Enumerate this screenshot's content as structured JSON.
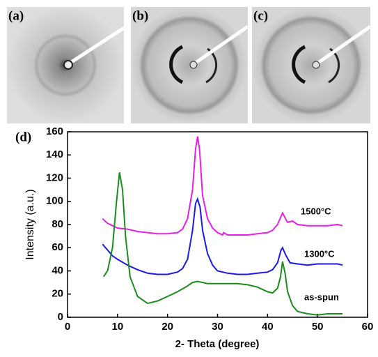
{
  "panels": [
    {
      "label": "(a)"
    },
    {
      "label": "(b)"
    },
    {
      "label": "(c)"
    }
  ],
  "chart_data": {
    "type": "line",
    "panel_label": "(d)",
    "x_label": "2- Theta (degree)",
    "y_label": "Intensity (a.u.)",
    "xlim": [
      0,
      60
    ],
    "xticks": [
      0,
      10,
      20,
      30,
      40,
      50,
      60
    ],
    "ylim": [
      0,
      160
    ],
    "yticks": [
      0,
      20,
      40,
      60,
      80,
      100,
      120,
      140,
      160
    ],
    "series": [
      {
        "name": "1500°C",
        "color": "#e81ee8",
        "x": [
          7,
          8,
          10,
          12,
          14,
          16,
          18,
          20,
          22,
          23,
          24,
          25,
          25.6,
          26,
          26.4,
          27,
          28,
          29,
          30,
          31,
          31.2,
          32,
          34,
          36,
          38,
          40,
          41,
          42,
          42.8,
          43,
          43.6,
          44,
          45,
          46,
          48,
          50,
          52,
          54,
          55
        ],
        "values": [
          85,
          81,
          77,
          76,
          74,
          73,
          72,
          72,
          73,
          76,
          85,
          110,
          145,
          156,
          145,
          105,
          85,
          77,
          73,
          71,
          73,
          71,
          71,
          71,
          72,
          73,
          75,
          80,
          88,
          90,
          85,
          82,
          83,
          80,
          79,
          79,
          79,
          80,
          79
        ]
      },
      {
        "name": "1300°C",
        "color": "#1a1ae6",
        "x": [
          7,
          8,
          9,
          10,
          12,
          14,
          16,
          18,
          20,
          22,
          23,
          24,
          25,
          25.6,
          26,
          26.5,
          27,
          28,
          29,
          30,
          32,
          34,
          36,
          38,
          40,
          41,
          42,
          42.7,
          43,
          43.6,
          44.5,
          46,
          48,
          50,
          52,
          54,
          55
        ],
        "values": [
          63,
          58,
          53,
          50,
          45,
          41,
          38,
          37,
          37,
          39,
          42,
          50,
          75,
          98,
          102,
          95,
          75,
          55,
          45,
          40,
          38,
          37,
          37,
          38,
          39,
          41,
          47,
          58,
          60,
          54,
          47,
          46,
          45,
          46,
          46,
          46,
          45
        ]
      },
      {
        "name": "as-spun",
        "color": "#1a8c1a",
        "x": [
          7.2,
          8,
          9,
          9.8,
          10.4,
          11,
          11.6,
          12.5,
          14,
          16,
          18,
          20,
          22,
          24,
          25,
          26,
          27,
          28,
          30,
          32,
          34,
          36,
          38,
          40,
          41,
          42,
          42.6,
          43,
          43.5,
          44,
          45,
          46,
          48,
          50,
          52,
          55
        ],
        "values": [
          35,
          40,
          60,
          100,
          125,
          110,
          70,
          35,
          18,
          12,
          14,
          18,
          22,
          27,
          30,
          31,
          30,
          29,
          29,
          29,
          29,
          28,
          26,
          22,
          21,
          25,
          35,
          48,
          38,
          22,
          10,
          5,
          3,
          2,
          3,
          3
        ]
      }
    ]
  }
}
